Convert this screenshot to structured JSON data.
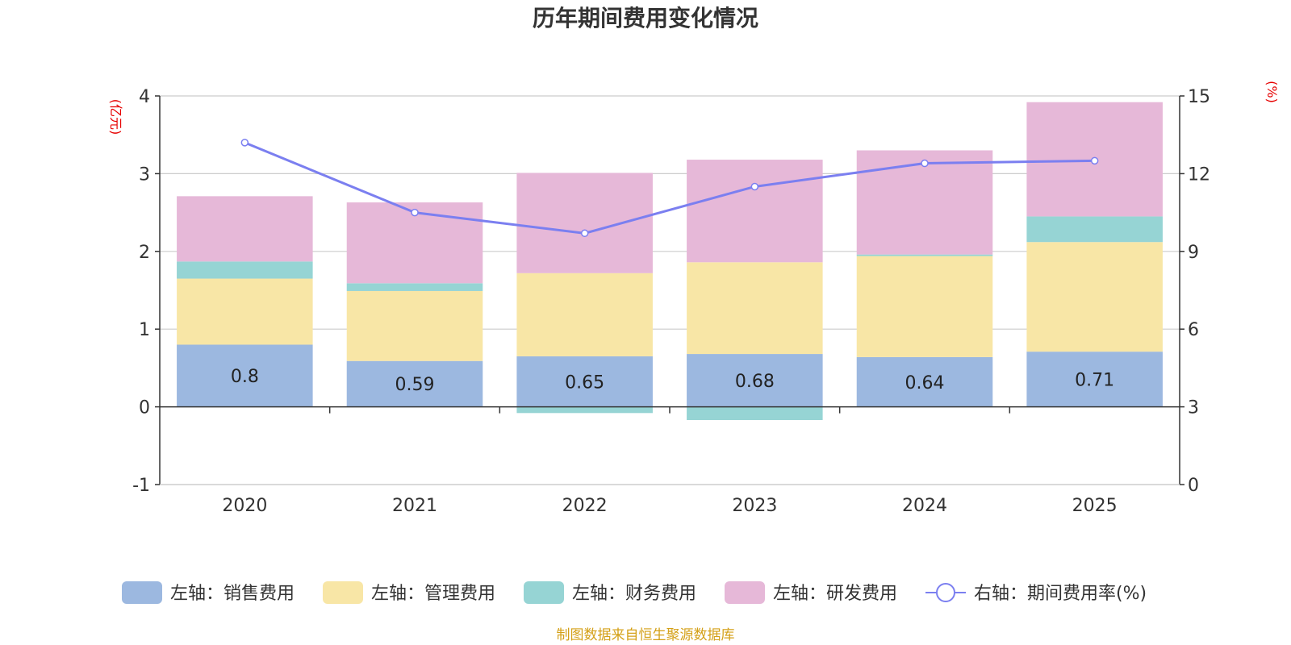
{
  "chart_data": {
    "type": "bar",
    "stacked": true,
    "title": "历年期间费用变化情况",
    "categories": [
      "2020",
      "2021",
      "2022",
      "2023",
      "2024",
      "2025"
    ],
    "series": [
      {
        "name": "销售费用",
        "legend": "左轴：销售费用",
        "axis": "left",
        "color": "#9cb8e0",
        "values": [
          0.8,
          0.59,
          0.65,
          0.68,
          0.64,
          0.71
        ],
        "labels": [
          "0.8",
          "0.59",
          "0.65",
          "0.68",
          "0.64",
          "0.71"
        ]
      },
      {
        "name": "管理费用",
        "legend": "左轴：管理费用",
        "axis": "left",
        "color": "#f8e6a6",
        "values": [
          0.85,
          0.9,
          1.07,
          1.18,
          1.3,
          1.41
        ]
      },
      {
        "name": "财务费用",
        "legend": "左轴：财务费用",
        "axis": "left",
        "color": "#96d4d4",
        "values": [
          0.22,
          0.1,
          -0.08,
          -0.17,
          0.02,
          0.33
        ]
      },
      {
        "name": "研发费用",
        "legend": "左轴：研发费用",
        "axis": "left",
        "color": "#e6b8d8",
        "values": [
          0.84,
          1.04,
          1.29,
          1.32,
          1.34,
          1.47
        ]
      }
    ],
    "line_series": {
      "name": "期间费用率(%)",
      "legend": "右轴：期间费用率(%)",
      "axis": "right",
      "color": "#7b7ff0",
      "values": [
        13.2,
        10.5,
        9.7,
        11.5,
        12.4,
        12.5
      ]
    },
    "left_axis": {
      "unit": "(亿元)",
      "min": -1,
      "max": 4,
      "ticks": [
        -1,
        0,
        1,
        2,
        3,
        4
      ]
    },
    "right_axis": {
      "unit": "(%)",
      "min": 0,
      "max": 15,
      "ticks": [
        0,
        3,
        6,
        9,
        12,
        15
      ]
    },
    "legend_position": "bottom-center",
    "grid": true
  },
  "footer": {
    "source": "制图数据来自恒生聚源数据库"
  }
}
